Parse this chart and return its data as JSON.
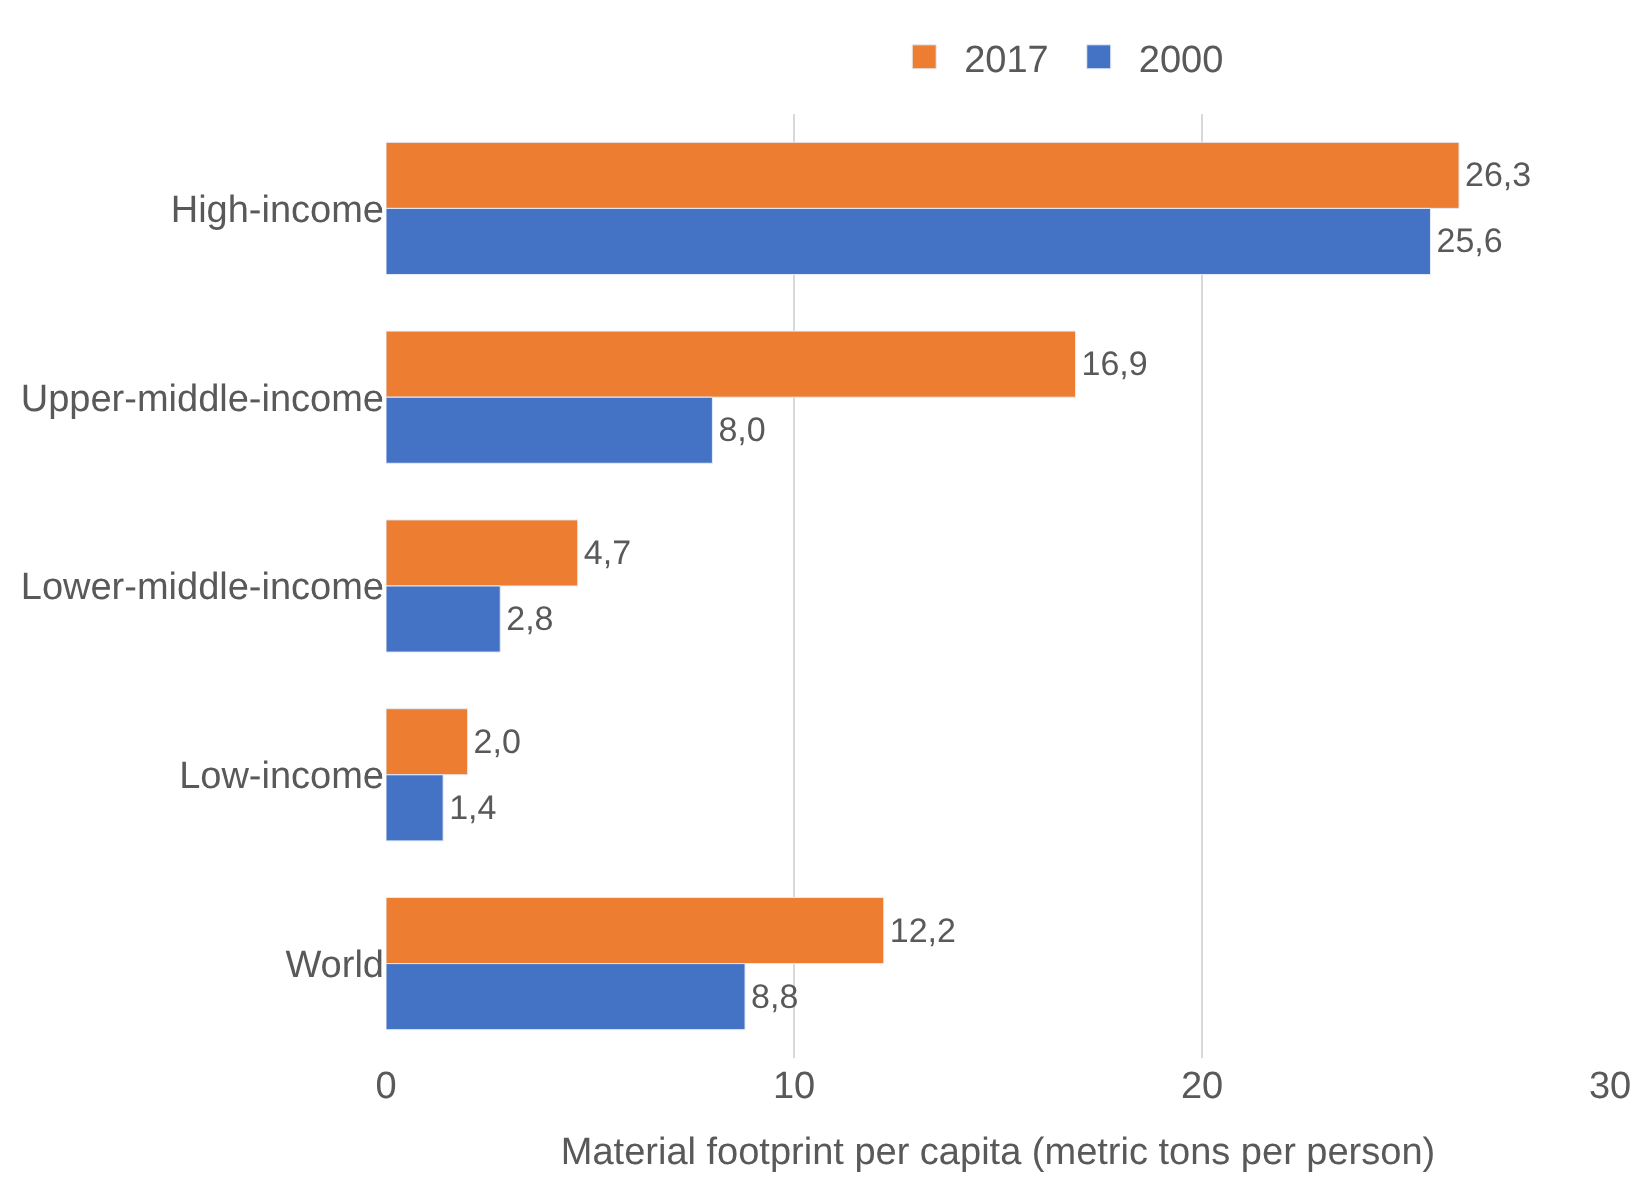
{
  "chart_data": {
    "type": "bar",
    "orientation": "horizontal",
    "xlabel": "Material footprint per capita (metric tons per person)",
    "categories": [
      "High-income",
      "Upper-middle-income",
      "Lower-middle-income",
      "Low-income",
      "World"
    ],
    "series": [
      {
        "name": "2017",
        "color": "#ed7d31",
        "values": [
          26.3,
          16.9,
          4.7,
          2.0,
          12.2
        ],
        "value_labels": [
          "26,3",
          "16,9",
          "4,7",
          "2,0",
          "12,2"
        ]
      },
      {
        "name": "2000",
        "color": "#4472c4",
        "values": [
          25.6,
          8.0,
          2.8,
          1.4,
          8.8
        ],
        "value_labels": [
          "25,6",
          "8,0",
          "2,8",
          "1,4",
          "8,8"
        ]
      }
    ],
    "xlim": [
      0,
      30
    ],
    "xticks": [
      0,
      10,
      20,
      30
    ],
    "grid": "x",
    "legend": "top"
  }
}
